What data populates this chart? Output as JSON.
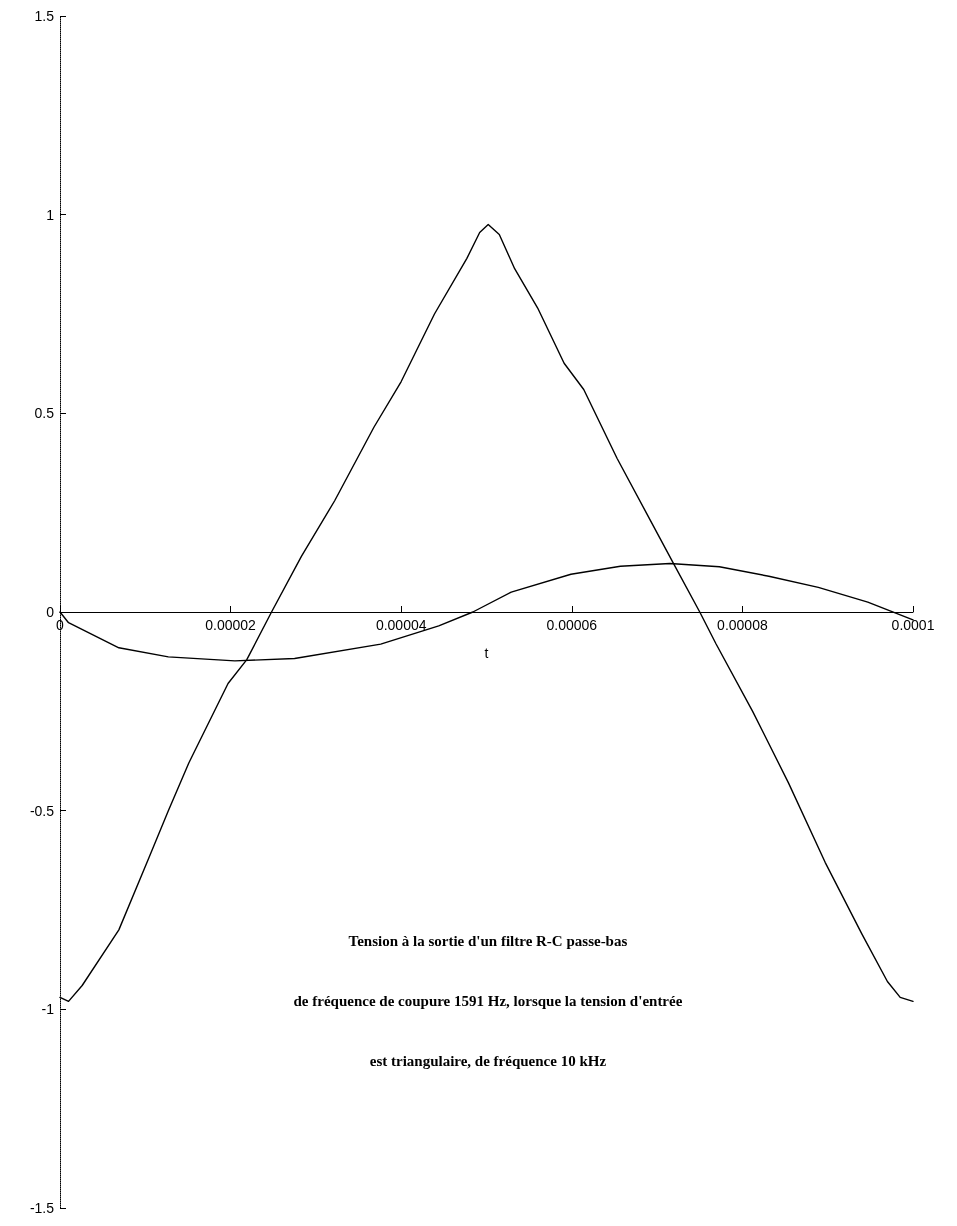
{
  "chart_data": {
    "type": "line",
    "xlabel": "t",
    "xlim": [
      0,
      0.0001
    ],
    "ylim": [
      -1.5,
      1.5
    ],
    "xticks": [
      0,
      {
        "value": 2e-05,
        "label": "0.00002"
      },
      {
        "value": 4e-05,
        "label": "0.00004"
      },
      {
        "value": 6e-05,
        "label": "0.00006"
      },
      {
        "value": 8e-05,
        "label": "0.00008"
      },
      0.0001
    ],
    "yticks": [
      -1.5,
      -1,
      -0.5,
      0,
      0.5,
      1,
      1.5
    ],
    "grid": false,
    "annotations": [
      "Tension à la sortie d'un filtre R-C passe-bas",
      "de fréquence de coupure 1591 Hz, lorsque la tension d'entrée",
      "est triangulaire, de fréquence 10 kHz"
    ],
    "series": [
      {
        "color": "#000000",
        "x": [
          0,
          1e-06,
          2.6e-06,
          6.9e-06,
          1.04e-05,
          1.27e-05,
          1.51e-05,
          1.97e-05,
          2.19e-05,
          2.48e-05,
          2.83e-05,
          3.22e-05,
          3.68e-05,
          4e-05,
          4.39e-05,
          4.77e-05,
          4.92e-05,
          5.02e-05,
          5.15e-05,
          5.33e-05,
          5.6e-05,
          5.91e-05,
          6.14e-05,
          6.53e-05,
          6.88e-05,
          7.19e-05,
          7.5e-05,
          7.69e-05,
          8.12e-05,
          8.54e-05,
          8.97e-05,
          9.4e-05,
          9.7e-05,
          9.85e-05,
          0.0001
        ],
        "values": [
          -0.97,
          -0.98,
          -0.94,
          -0.8,
          -0.62,
          -0.5,
          -0.38,
          -0.18,
          -0.12,
          0,
          0.14,
          0.28,
          0.465,
          0.58,
          0.75,
          0.89,
          0.955,
          0.975,
          0.95,
          0.864,
          0.765,
          0.626,
          0.56,
          0.387,
          0.247,
          0.123,
          0,
          -0.08,
          -0.25,
          -0.43,
          -0.63,
          -0.81,
          -0.93,
          -0.97,
          -0.98
        ]
      },
      {
        "color": "#000000",
        "x": [
          0,
          1e-06,
          6.9e-06,
          1.27e-05,
          2.05e-05,
          2.75e-05,
          3.76e-05,
          4.44e-05,
          4.84e-05,
          5.29e-05,
          5.99e-05,
          6.57e-05,
          7.15e-05,
          7.73e-05,
          8.31e-05,
          8.89e-05,
          9.47e-05,
          0.0001
        ],
        "values": [
          0,
          -0.027,
          -0.09,
          -0.113,
          -0.123,
          -0.117,
          -0.081,
          -0.035,
          0,
          0.05,
          0.095,
          0.115,
          0.122,
          0.114,
          0.09,
          0.062,
          0.025,
          -0.02
        ]
      }
    ]
  }
}
